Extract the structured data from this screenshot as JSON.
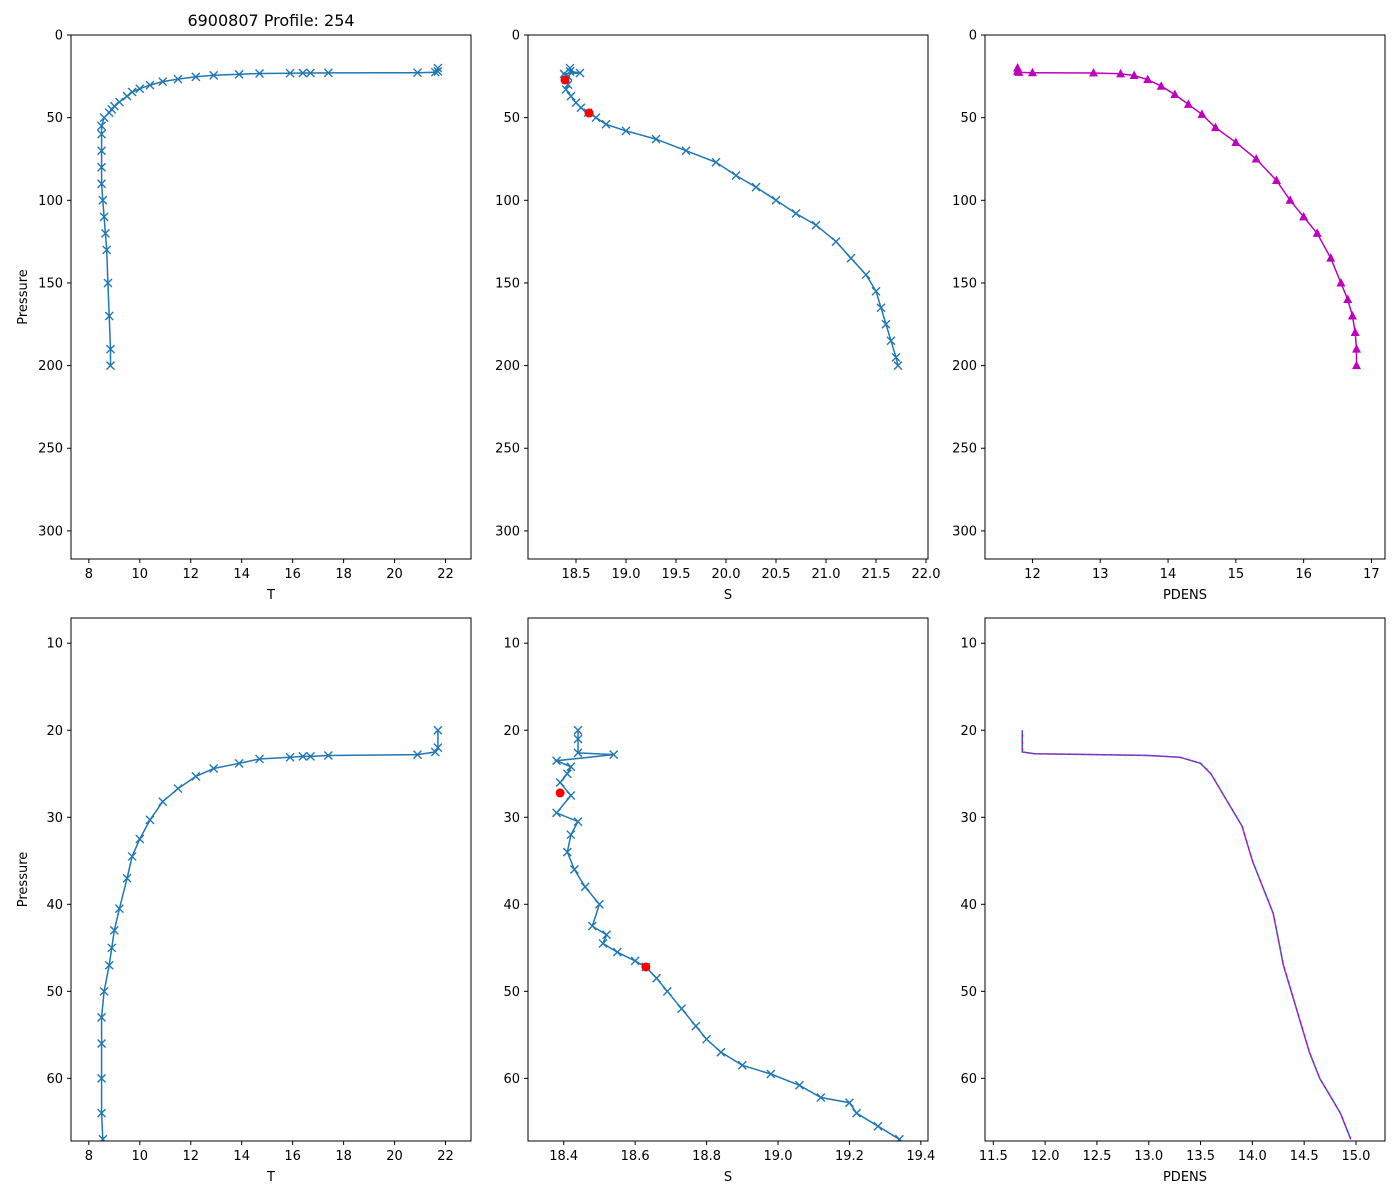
{
  "title": "6900807 Profile: 254",
  "colors": {
    "series": "#1f77b4",
    "flag": "#ff0000",
    "density": "#bf00bf",
    "density_dash": "#1f77b4"
  },
  "chart_data": [
    {
      "id": "top-temperature",
      "type": "line",
      "title": "6900807 Profile: 254",
      "xlabel": "T",
      "ylabel": "Pressure",
      "xlim": [
        7.3,
        23.0
      ],
      "ylim": [
        317,
        0
      ],
      "xticks": [
        8,
        10,
        12,
        14,
        16,
        18,
        20,
        22
      ],
      "yticks": [
        0,
        50,
        100,
        150,
        200,
        250,
        300
      ],
      "marker": "x",
      "series": [
        {
          "name": "T",
          "x": [
            21.7,
            21.7,
            21.6,
            20.9,
            17.4,
            16.7,
            16.4,
            15.9,
            14.7,
            13.9,
            12.9,
            12.2,
            11.5,
            10.9,
            10.4,
            10.0,
            9.7,
            9.5,
            9.2,
            9.0,
            8.9,
            8.8,
            8.6,
            8.5,
            8.5,
            8.5,
            8.5,
            8.5,
            8.55,
            8.6,
            8.65,
            8.7,
            8.75,
            8.8,
            8.85,
            8.85
          ],
          "y": [
            20,
            22,
            22.5,
            22.8,
            22.9,
            23.0,
            23.0,
            23.1,
            23.3,
            23.8,
            24.4,
            25.3,
            26.7,
            28.2,
            30.3,
            32.5,
            34.5,
            37,
            40.5,
            43,
            45,
            47,
            50,
            55,
            60,
            70,
            80,
            90,
            100,
            110,
            120,
            130,
            150,
            170,
            190,
            200
          ]
        }
      ]
    },
    {
      "id": "top-salinity",
      "type": "line",
      "xlabel": "S",
      "ylabel": "",
      "xlim": [
        18.02,
        22.02
      ],
      "ylim": [
        317,
        0
      ],
      "xticks": [
        18.5,
        19.0,
        19.5,
        20.0,
        20.5,
        21.0,
        21.5,
        22.0
      ],
      "xtick_labels": [
        "18.5",
        "19.0",
        "19.5",
        "20.0",
        "20.5",
        "21.0",
        "21.5",
        "22.0"
      ],
      "yticks": [
        0,
        50,
        100,
        150,
        200,
        250,
        300
      ],
      "marker": "x",
      "series": [
        {
          "name": "S",
          "x": [
            18.44,
            18.44,
            18.54,
            18.38,
            18.42,
            18.4,
            18.42,
            18.4,
            18.45,
            18.5,
            18.55,
            18.62,
            18.7,
            18.8,
            19.0,
            19.3,
            19.6,
            19.9,
            20.1,
            20.3,
            20.5,
            20.7,
            20.9,
            21.1,
            21.25,
            21.4,
            21.5,
            21.55,
            21.6,
            21.65,
            21.7,
            21.72
          ],
          "y": [
            20,
            22,
            23,
            23.5,
            25,
            27,
            30,
            33,
            37,
            41,
            44,
            47,
            50,
            54,
            58,
            63,
            70,
            77,
            85,
            92,
            100,
            108,
            115,
            125,
            135,
            145,
            155,
            165,
            175,
            185,
            195,
            200
          ]
        }
      ],
      "flags": {
        "x": [
          18.39,
          18.63
        ],
        "y": [
          27.2,
          47.2
        ]
      }
    },
    {
      "id": "top-density",
      "type": "line",
      "xlabel": "PDENS",
      "ylabel": "",
      "xlim": [
        11.3,
        17.2
      ],
      "ylim": [
        317,
        0
      ],
      "xticks": [
        12,
        13,
        14,
        15,
        16,
        17
      ],
      "yticks": [
        0,
        50,
        100,
        150,
        200,
        250,
        300
      ],
      "marker": "triangle",
      "series": [
        {
          "name": "PDENS",
          "x": [
            11.78,
            11.78,
            11.8,
            12.0,
            12.9,
            13.3,
            13.5,
            13.7,
            13.9,
            14.1,
            14.3,
            14.5,
            14.7,
            15.0,
            15.3,
            15.6,
            15.8,
            16.0,
            16.2,
            16.4,
            16.55,
            16.65,
            16.72,
            16.76,
            16.78,
            16.78
          ],
          "y": [
            20,
            22,
            22.6,
            22.8,
            23,
            23.5,
            24.5,
            27,
            31,
            36,
            42,
            48,
            56,
            65,
            75,
            88,
            100,
            110,
            120,
            135,
            150,
            160,
            170,
            180,
            190,
            200
          ]
        }
      ]
    },
    {
      "id": "bottom-temperature",
      "type": "line",
      "xlabel": "T",
      "ylabel": "Pressure",
      "xlim": [
        7.3,
        23.0
      ],
      "ylim": [
        67.2,
        7.1
      ],
      "xticks": [
        8,
        10,
        12,
        14,
        16,
        18,
        20,
        22
      ],
      "yticks": [
        10,
        20,
        30,
        40,
        50,
        60
      ],
      "marker": "x",
      "series": [
        {
          "name": "T",
          "x": [
            21.7,
            21.7,
            21.6,
            20.9,
            17.4,
            16.7,
            16.4,
            15.9,
            14.7,
            13.9,
            12.9,
            12.2,
            11.5,
            10.9,
            10.4,
            10.0,
            9.7,
            9.5,
            9.2,
            9.0,
            8.9,
            8.8,
            8.6,
            8.5,
            8.5,
            8.5,
            8.5,
            8.55
          ],
          "y": [
            20,
            22,
            22.5,
            22.8,
            22.9,
            23.0,
            23.0,
            23.1,
            23.3,
            23.8,
            24.4,
            25.3,
            26.7,
            28.2,
            30.3,
            32.5,
            34.5,
            37,
            40.5,
            43,
            45,
            47,
            50,
            53,
            56,
            60,
            64,
            67
          ]
        }
      ]
    },
    {
      "id": "bottom-salinity",
      "type": "line",
      "xlabel": "S",
      "ylabel": "",
      "xlim": [
        18.3,
        19.42
      ],
      "ylim": [
        67.2,
        7.1
      ],
      "xticks": [
        18.4,
        18.6,
        18.8,
        19.0,
        19.2,
        19.4
      ],
      "xtick_labels": [
        "18.4",
        "18.6",
        "18.8",
        "19.0",
        "19.2",
        "19.4"
      ],
      "yticks": [
        10,
        20,
        30,
        40,
        50,
        60
      ],
      "marker": "x",
      "series": [
        {
          "name": "S",
          "x": [
            18.44,
            18.44,
            18.44,
            18.54,
            18.38,
            18.42,
            18.41,
            18.39,
            18.42,
            18.38,
            18.44,
            18.42,
            18.41,
            18.43,
            18.46,
            18.5,
            18.48,
            18.52,
            18.51,
            18.55,
            18.6,
            18.63,
            18.66,
            18.69,
            18.73,
            18.77,
            18.8,
            18.84,
            18.9,
            18.98,
            19.06,
            19.12,
            19.2,
            19.22,
            19.28,
            19.34
          ],
          "y": [
            20,
            21,
            22.6,
            22.8,
            23.5,
            24.2,
            25,
            26,
            27.5,
            29.5,
            30.5,
            32,
            34,
            36,
            38,
            40,
            42.5,
            43.5,
            44.5,
            45.5,
            46.5,
            47.2,
            48.5,
            50,
            52,
            54,
            55.5,
            57,
            58.5,
            59.5,
            60.8,
            62.2,
            62.8,
            64,
            65.5,
            67
          ]
        }
      ],
      "flags": {
        "x": [
          18.39,
          18.63
        ],
        "y": [
          27.2,
          47.2
        ]
      }
    },
    {
      "id": "bottom-density",
      "type": "line",
      "xlabel": "PDENS",
      "ylabel": "",
      "xlim": [
        11.42,
        15.28
      ],
      "ylim": [
        67.2,
        7.1
      ],
      "xticks": [
        11.5,
        12.0,
        12.5,
        13.0,
        13.5,
        14.0,
        14.5,
        15.0
      ],
      "xtick_labels": [
        "11.5",
        "12.0",
        "12.5",
        "13.0",
        "13.5",
        "14.0",
        "14.5",
        "15.0"
      ],
      "yticks": [
        10,
        20,
        30,
        40,
        50,
        60
      ],
      "marker": "none",
      "series": [
        {
          "name": "PDENS",
          "x": [
            11.78,
            11.78,
            11.78,
            11.9,
            12.5,
            13.0,
            13.3,
            13.5,
            13.6,
            13.7,
            13.8,
            13.9,
            14.0,
            14.1,
            14.2,
            14.25,
            14.3,
            14.35,
            14.4,
            14.45,
            14.5,
            14.55,
            14.65,
            14.75,
            14.85,
            14.95
          ],
          "y": [
            20,
            21,
            22.5,
            22.7,
            22.8,
            22.9,
            23.1,
            23.8,
            25,
            27,
            29,
            31,
            35,
            38,
            41,
            44,
            47,
            49,
            51,
            53,
            55,
            57,
            60,
            62,
            64,
            67
          ]
        }
      ]
    }
  ]
}
